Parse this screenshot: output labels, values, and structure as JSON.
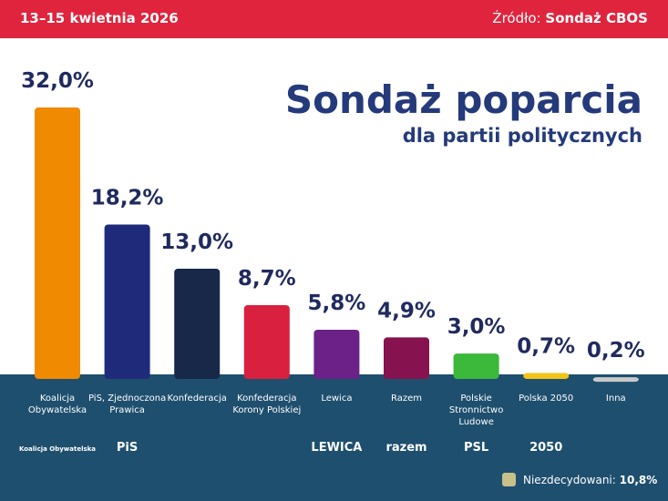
{
  "chart_data": {
    "type": "bar",
    "date": "13–15 kwietnia 2026",
    "source_label": "Źródło:",
    "source": "Sondaż CBOS",
    "title": "Sondaż poparcia",
    "subtitle": "dla partii politycznych",
    "categories": [
      "Koalicja Obywatelska",
      "PiS, Zjednoczona Prawica",
      "Konfederacja",
      "Konfederacja Korony Polskiej",
      "Lewica",
      "Razem",
      "Polskie Stronnictwo Ludowe",
      "Polska 2050",
      "Inna"
    ],
    "values": [
      32.0,
      18.2,
      13.0,
      8.7,
      5.8,
      4.9,
      3.0,
      0.7,
      0.2
    ],
    "value_labels": [
      "32,0%",
      "18,2%",
      "13,0%",
      "8,7%",
      "5,8%",
      "4,9%",
      "3,0%",
      "0,7%",
      "0,2%"
    ],
    "colors": [
      "#f08a00",
      "#1f2a7a",
      "#172849",
      "#d9203f",
      "#6b2187",
      "#86124f",
      "#3cb83a",
      "#f2c418",
      "#c9c9c9"
    ],
    "logos": [
      "Koalicja Obywatelska",
      "PiS",
      null,
      null,
      "LEWICA",
      "razem",
      "PSL",
      "2050",
      null
    ],
    "undecided": {
      "label": "Niezdecydowani:",
      "value": 10.8,
      "value_label": "10,8%",
      "color": "#c8c08a"
    }
  }
}
